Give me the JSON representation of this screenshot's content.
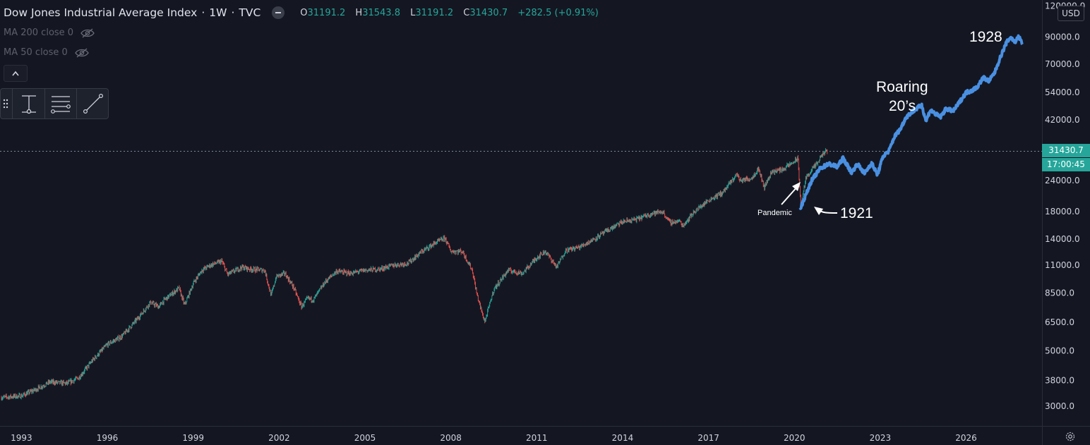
{
  "header": {
    "title": "Dow Jones Industrial Average Index",
    "interval": "1W",
    "exchange": "TVC",
    "sep1": "·",
    "sep2": "·",
    "ohlc": {
      "o_label": "O",
      "o": "31191.2",
      "h_label": "H",
      "h": "31543.8",
      "l_label": "L",
      "l": "31191.2",
      "c_label": "C",
      "c": "31430.7",
      "change": "+282.5 (+0.91%)"
    }
  },
  "indicators": [
    {
      "label": "MA 200 close 0"
    },
    {
      "label": "MA 50 close 0"
    }
  ],
  "currency_button": "USD",
  "price_tags": {
    "last_price": "31430.7",
    "countdown": "17:00:45"
  },
  "colors": {
    "background": "#141722",
    "up": "#26a69a",
    "down": "#ef5350",
    "projection": "#4a90e2",
    "axis_text": "#d1d4dc"
  },
  "icons": [
    "status-minus-icon",
    "eye-off-icon",
    "chevron-up-icon",
    "drag-handle-icon",
    "anchored-vwap-icon",
    "lines-icon",
    "trendline-icon",
    "gear-icon"
  ],
  "chart_data": {
    "type": "line",
    "scale": "log",
    "y_ticks": [
      120000,
      90000,
      70000,
      54000,
      42000,
      24000,
      18000,
      14000,
      11000,
      8500,
      6500,
      5000,
      3800,
      3000
    ],
    "y_tick_labels": [
      "120000.0",
      "90000.0",
      "70000.0",
      "54000.0",
      "42000.0",
      "24000.0",
      "18000.0",
      "14000.0",
      "11000.0",
      "8500.0",
      "6500.0",
      "5000.0",
      "3800.0",
      "3000.0"
    ],
    "x_ticks": [
      1993,
      1996,
      1999,
      2002,
      2005,
      2008,
      2011,
      2014,
      2017,
      2020,
      2023,
      2026
    ],
    "x_range": [
      1992.25,
      2028.65
    ],
    "y_range": [
      2500,
      125000
    ],
    "last_price": 31430.7,
    "series": [
      {
        "x": [
          1992.3,
          1993.0,
          1993.5,
          1994.0,
          1994.6,
          1995.0,
          1995.5,
          1996.0,
          1996.5,
          1997.0,
          1997.5,
          1997.8,
          1998.0,
          1998.5,
          1998.7,
          1999.0,
          1999.3,
          1999.6,
          2000.0,
          2000.2,
          2000.7,
          2001.0,
          2001.5,
          2001.72,
          2001.9,
          2002.2,
          2002.5,
          2002.78,
          2003.0,
          2003.2,
          2003.6,
          2004.0,
          2004.5,
          2005.0,
          2005.5,
          2006.0,
          2006.5,
          2007.0,
          2007.5,
          2007.8,
          2008.0,
          2008.4,
          2008.75,
          2008.9,
          2009.1,
          2009.19,
          2009.5,
          2010.0,
          2010.5,
          2011.0,
          2011.3,
          2011.7,
          2012.0,
          2012.5,
          2013.0,
          2013.5,
          2014.0,
          2014.5,
          2015.0,
          2015.4,
          2015.65,
          2016.0,
          2016.1,
          2016.5,
          2017.0,
          2017.5,
          2018.0,
          2018.1,
          2018.5,
          2018.75,
          2018.95,
          2019.2,
          2019.6,
          2020.0,
          2020.12,
          2020.23,
          2020.4,
          2020.6,
          2020.8,
          2021.0,
          2021.15
        ],
        "y": [
          3250,
          3300,
          3500,
          3750,
          3700,
          3900,
          4600,
          5300,
          5700,
          6600,
          7800,
          7500,
          8000,
          8900,
          7600,
          9300,
          10500,
          11000,
          11400,
          10100,
          10800,
          10600,
          10500,
          8300,
          9900,
          10200,
          9000,
          7500,
          8100,
          8000,
          9400,
          10400,
          10200,
          10500,
          10600,
          11000,
          11200,
          12500,
          13600,
          14100,
          12500,
          12500,
          10500,
          8500,
          7000,
          6547,
          8800,
          10500,
          10200,
          11800,
          12500,
          10800,
          12600,
          13000,
          14000,
          15200,
          16400,
          16800,
          17700,
          18000,
          16300,
          16500,
          15800,
          18000,
          20000,
          21500,
          25500,
          24000,
          24500,
          26800,
          22500,
          26000,
          26600,
          28600,
          29400,
          19000,
          24500,
          26500,
          28000,
          30800,
          31430
        ]
      },
      {
        "name": "",
        "x": [
          2020.2,
          2020.4,
          2020.6,
          2020.9,
          2021.2,
          2021.5,
          2021.7,
          2022.0,
          2022.2,
          2022.45,
          2022.7,
          2022.9,
          2023.1,
          2023.3,
          2023.5,
          2023.7,
          2023.9,
          2024.2,
          2024.45,
          2024.6,
          2024.75,
          2024.85,
          2025.1,
          2025.3,
          2025.55,
          2025.8,
          2026.0,
          2026.2,
          2026.4,
          2026.6,
          2026.8,
          2027.0,
          2027.2,
          2027.4,
          2027.55,
          2027.7,
          2027.83,
          2027.9,
          2027.97
        ],
        "y": [
          18500,
          21000,
          24000,
          26800,
          28000,
          27200,
          29500,
          25800,
          28000,
          25600,
          28200,
          25300,
          30000,
          31500,
          36000,
          38500,
          43000,
          46000,
          48000,
          41500,
          46000,
          45000,
          43000,
          46500,
          45500,
          50000,
          54000,
          55000,
          57000,
          62000,
          60000,
          65000,
          75000,
          85000,
          90000,
          86000,
          90000,
          88000,
          84000
        ]
      }
    ],
    "annotations": [
      {
        "text": "1928"
      },
      {
        "text": "Roaring"
      },
      {
        "text": "20’s"
      },
      {
        "text": "Pandemic"
      },
      {
        "text": "1921"
      }
    ]
  }
}
